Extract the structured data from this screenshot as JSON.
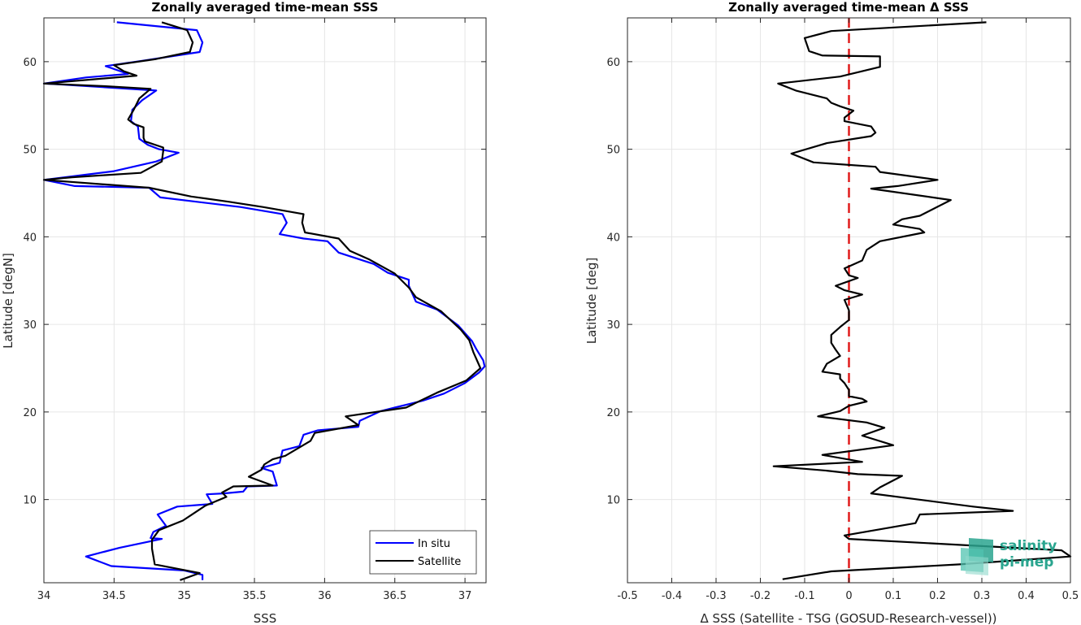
{
  "chart_data": [
    {
      "type": "line",
      "title": "Zonally averaged time-mean SSS",
      "xlabel": "SSS",
      "ylabel": "Latitude [degN]",
      "xlim": [
        34,
        37.15
      ],
      "ylim": [
        0.5,
        65
      ],
      "xticks": [
        "34",
        "34.5",
        "35",
        "35.5",
        "36",
        "36.5",
        "37"
      ],
      "xtick_values": [
        34,
        34.5,
        35,
        35.5,
        36,
        36.5,
        37
      ],
      "yticks": [
        "10",
        "20",
        "30",
        "40",
        "50",
        "60"
      ],
      "ytick_values": [
        10,
        20,
        30,
        40,
        50,
        60
      ],
      "grid": true,
      "legend": "bottom-right",
      "series": [
        {
          "name": "In situ",
          "color": "#0000ff",
          "points": [
            [
              34.52,
              64.5
            ],
            [
              35.09,
              63.6
            ],
            [
              35.13,
              62.2
            ],
            [
              35.11,
              61.1
            ],
            [
              34.7,
              60.1
            ],
            [
              34.44,
              59.5
            ],
            [
              34.6,
              58.6
            ],
            [
              34.3,
              58.2
            ],
            [
              34.0,
              57.5
            ],
            [
              34.12,
              57.4
            ],
            [
              34.8,
              56.7
            ],
            [
              34.7,
              55.6
            ],
            [
              34.63,
              54.5
            ],
            [
              34.62,
              53.2
            ],
            [
              34.67,
              52.6
            ],
            [
              34.68,
              51.2
            ],
            [
              34.74,
              50.5
            ],
            [
              34.82,
              50.0
            ],
            [
              34.96,
              49.6
            ],
            [
              34.8,
              48.6
            ],
            [
              34.5,
              47.5
            ],
            [
              34.0,
              46.5
            ],
            [
              34.22,
              45.8
            ],
            [
              34.75,
              45.6
            ],
            [
              34.83,
              44.5
            ],
            [
              35.4,
              43.4
            ],
            [
              35.7,
              42.6
            ],
            [
              35.73,
              41.6
            ],
            [
              35.68,
              40.3
            ],
            [
              35.85,
              39.8
            ],
            [
              36.02,
              39.5
            ],
            [
              36.1,
              38.2
            ],
            [
              36.35,
              36.9
            ],
            [
              36.45,
              35.9
            ],
            [
              36.6,
              35.1
            ],
            [
              36.6,
              34.4
            ],
            [
              36.65,
              32.6
            ],
            [
              36.8,
              31.7
            ],
            [
              36.95,
              29.9
            ],
            [
              37.05,
              28.1
            ],
            [
              37.08,
              27.2
            ],
            [
              37.13,
              25.9
            ],
            [
              37.14,
              25.2
            ],
            [
              37.1,
              24.5
            ],
            [
              37.0,
              23.3
            ],
            [
              36.85,
              22.1
            ],
            [
              36.7,
              21.3
            ],
            [
              36.5,
              20.5
            ],
            [
              36.4,
              20.1
            ],
            [
              36.25,
              19.0
            ],
            [
              36.24,
              18.3
            ],
            [
              35.95,
              17.9
            ],
            [
              35.85,
              17.4
            ],
            [
              35.82,
              16.1
            ],
            [
              35.7,
              15.6
            ],
            [
              35.68,
              14.2
            ],
            [
              35.55,
              13.6
            ],
            [
              35.63,
              13.2
            ],
            [
              35.66,
              11.6
            ],
            [
              35.45,
              11.5
            ],
            [
              35.42,
              10.9
            ],
            [
              35.28,
              10.7
            ],
            [
              35.16,
              10.6
            ],
            [
              35.2,
              9.5
            ],
            [
              34.95,
              9.2
            ],
            [
              34.81,
              8.3
            ],
            [
              34.87,
              7.0
            ],
            [
              34.78,
              6.3
            ],
            [
              34.76,
              5.6
            ],
            [
              34.84,
              5.5
            ],
            [
              34.54,
              4.5
            ],
            [
              34.3,
              3.5
            ],
            [
              34.48,
              2.4
            ],
            [
              35.0,
              1.9
            ],
            [
              35.13,
              1.4
            ],
            [
              35.13,
              0.8
            ]
          ]
        },
        {
          "name": "Satellite",
          "color": "#000000",
          "points": [
            [
              34.84,
              64.5
            ],
            [
              35.02,
              63.6
            ],
            [
              35.06,
              62.2
            ],
            [
              35.04,
              61.1
            ],
            [
              34.8,
              60.3
            ],
            [
              34.5,
              59.6
            ],
            [
              34.57,
              58.9
            ],
            [
              34.66,
              58.4
            ],
            [
              34.0,
              57.5
            ],
            [
              34.43,
              57.2
            ],
            [
              34.76,
              56.9
            ],
            [
              34.68,
              55.8
            ],
            [
              34.64,
              54.5
            ],
            [
              34.6,
              53.4
            ],
            [
              34.64,
              52.9
            ],
            [
              34.71,
              52.5
            ],
            [
              34.71,
              51.3
            ],
            [
              34.72,
              50.9
            ],
            [
              34.85,
              50.2
            ],
            [
              34.85,
              49.8
            ],
            [
              34.84,
              48.6
            ],
            [
              34.69,
              47.3
            ],
            [
              34.2,
              46.8
            ],
            [
              34.0,
              46.5
            ],
            [
              34.75,
              45.6
            ],
            [
              35.05,
              44.6
            ],
            [
              35.32,
              44.0
            ],
            [
              35.56,
              43.4
            ],
            [
              35.85,
              42.6
            ],
            [
              35.84,
              41.6
            ],
            [
              35.86,
              40.5
            ],
            [
              36.1,
              39.8
            ],
            [
              36.18,
              38.4
            ],
            [
              36.32,
              37.4
            ],
            [
              36.5,
              35.8
            ],
            [
              36.6,
              34.2
            ],
            [
              36.65,
              33.1
            ],
            [
              36.83,
              31.5
            ],
            [
              36.97,
              29.4
            ],
            [
              37.03,
              28.2
            ],
            [
              37.06,
              26.8
            ],
            [
              37.11,
              25.0
            ],
            [
              37.01,
              23.6
            ],
            [
              36.8,
              22.2
            ],
            [
              36.58,
              20.5
            ],
            [
              36.15,
              19.5
            ],
            [
              36.24,
              18.5
            ],
            [
              35.93,
              17.6
            ],
            [
              35.9,
              16.7
            ],
            [
              35.72,
              15.0
            ],
            [
              35.63,
              14.6
            ],
            [
              35.57,
              14.0
            ],
            [
              35.55,
              13.4
            ],
            [
              35.46,
              12.6
            ],
            [
              35.63,
              11.6
            ],
            [
              35.35,
              11.5
            ],
            [
              35.27,
              10.8
            ],
            [
              35.3,
              10.3
            ],
            [
              35.15,
              9.3
            ],
            [
              34.99,
              7.6
            ],
            [
              34.82,
              6.5
            ],
            [
              34.77,
              5.4
            ],
            [
              34.77,
              4.4
            ],
            [
              34.79,
              2.6
            ],
            [
              35.11,
              1.6
            ],
            [
              34.97,
              0.8
            ]
          ]
        }
      ]
    },
    {
      "type": "line",
      "title": "Zonally averaged time-mean Δ SSS",
      "xlabel": "Δ SSS (Satellite - TSG (GOSUD-Research-vessel))",
      "ylabel": "Latitude [deg]",
      "xlim": [
        -0.5,
        0.5
      ],
      "ylim": [
        0.5,
        65
      ],
      "xticks": [
        "-0.5",
        "-0.4",
        "-0.3",
        "-0.2",
        "-0.1",
        "0",
        "0.1",
        "0.2",
        "0.3",
        "0.4",
        "0.5"
      ],
      "xtick_values": [
        -0.5,
        -0.4,
        -0.3,
        -0.2,
        -0.1,
        0,
        0.1,
        0.2,
        0.3,
        0.4,
        0.5
      ],
      "yticks": [
        "10",
        "20",
        "30",
        "40",
        "50",
        "60"
      ],
      "ytick_values": [
        10,
        20,
        30,
        40,
        50,
        60
      ],
      "grid": true,
      "reference_line": {
        "x": 0,
        "color": "#e01b1b",
        "style": "dashed"
      },
      "series": [
        {
          "name": "",
          "color": "#000000",
          "points": [
            [
              0.31,
              64.5
            ],
            [
              -0.04,
              63.5
            ],
            [
              -0.1,
              62.7
            ],
            [
              -0.09,
              61.2
            ],
            [
              -0.06,
              60.7
            ],
            [
              0.07,
              60.6
            ],
            [
              0.07,
              59.4
            ],
            [
              -0.02,
              58.3
            ],
            [
              -0.16,
              57.5
            ],
            [
              -0.12,
              56.7
            ],
            [
              -0.05,
              55.8
            ],
            [
              -0.04,
              55.3
            ],
            [
              -0.02,
              54.9
            ],
            [
              0.01,
              54.4
            ],
            [
              0.0,
              54.0
            ],
            [
              -0.01,
              53.6
            ],
            [
              -0.01,
              53.2
            ],
            [
              0.05,
              52.6
            ],
            [
              0.06,
              51.9
            ],
            [
              0.05,
              51.5
            ],
            [
              -0.05,
              50.7
            ],
            [
              -0.13,
              49.5
            ],
            [
              -0.08,
              48.5
            ],
            [
              0.06,
              48.0
            ],
            [
              0.07,
              47.4
            ],
            [
              0.2,
              46.5
            ],
            [
              0.11,
              45.8
            ],
            [
              0.05,
              45.5
            ],
            [
              0.23,
              44.2
            ],
            [
              0.16,
              42.4
            ],
            [
              0.12,
              42.0
            ],
            [
              0.1,
              41.4
            ],
            [
              0.16,
              40.9
            ],
            [
              0.17,
              40.5
            ],
            [
              0.07,
              39.5
            ],
            [
              0.04,
              38.5
            ],
            [
              0.03,
              37.3
            ],
            [
              -0.01,
              36.4
            ],
            [
              0.0,
              35.6
            ],
            [
              0.02,
              35.3
            ],
            [
              -0.03,
              34.4
            ],
            [
              -0.01,
              33.9
            ],
            [
              0.03,
              33.4
            ],
            [
              -0.01,
              32.8
            ],
            [
              0.0,
              31.6
            ],
            [
              0.0,
              30.5
            ],
            [
              -0.02,
              29.7
            ],
            [
              -0.04,
              28.8
            ],
            [
              -0.04,
              27.9
            ],
            [
              -0.03,
              27.1
            ],
            [
              -0.02,
              26.4
            ],
            [
              -0.05,
              25.5
            ],
            [
              -0.06,
              24.6
            ],
            [
              -0.02,
              24.3
            ],
            [
              -0.02,
              23.8
            ],
            [
              -0.01,
              23.3
            ],
            [
              0.0,
              22.5
            ],
            [
              0.0,
              21.8
            ],
            [
              0.03,
              21.5
            ],
            [
              0.04,
              21.2
            ],
            [
              0.0,
              20.7
            ],
            [
              -0.02,
              20.1
            ],
            [
              -0.07,
              19.5
            ],
            [
              0.04,
              18.8
            ],
            [
              0.08,
              18.2
            ],
            [
              0.03,
              17.3
            ],
            [
              0.1,
              16.2
            ],
            [
              -0.06,
              15.1
            ],
            [
              0.03,
              14.3
            ],
            [
              -0.17,
              13.8
            ],
            [
              -0.05,
              13.3
            ],
            [
              0.02,
              12.9
            ],
            [
              0.12,
              12.7
            ],
            [
              0.07,
              11.4
            ],
            [
              0.05,
              10.7
            ],
            [
              0.28,
              9.2
            ],
            [
              0.37,
              8.7
            ],
            [
              0.16,
              8.3
            ],
            [
              0.15,
              7.3
            ],
            [
              -0.01,
              5.9
            ],
            [
              0.0,
              5.5
            ],
            [
              0.48,
              4.2
            ],
            [
              0.5,
              3.5
            ],
            [
              0.25,
              2.6
            ],
            [
              -0.04,
              1.8
            ],
            [
              -0.15,
              0.9
            ]
          ]
        }
      ]
    }
  ],
  "legend": {
    "items": [
      "In situ",
      "Satellite"
    ]
  },
  "logo": {
    "line1": "salinity",
    "line2": "pi-mep"
  },
  "colors": {
    "insitu": "#0000ff",
    "satellite": "#000000",
    "zero_line": "#e01b1b",
    "grid": "#e6e6e6",
    "axis": "#262626",
    "logo": "#2aa58f"
  }
}
